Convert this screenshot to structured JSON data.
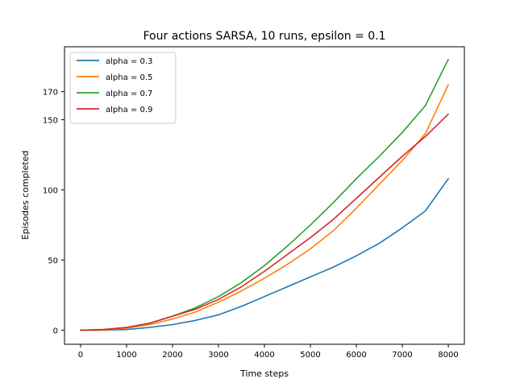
{
  "chart_data": {
    "type": "line",
    "title": "Four actions SARSA, 10 runs, epsilon = 0.1",
    "xlabel": "Time steps",
    "ylabel": "Episodes completed",
    "xlim": [
      -350,
      8350
    ],
    "ylim": [
      -10,
      202
    ],
    "xticks": [
      0,
      1000,
      2000,
      3000,
      4000,
      5000,
      6000,
      7000,
      8000
    ],
    "yticks": [
      0,
      50,
      100,
      150,
      170
    ],
    "legend_position": "upper-left",
    "grid": false,
    "series": [
      {
        "name": "alpha = 0.3",
        "color": "#1f77b4",
        "x": [
          0,
          500,
          1000,
          1500,
          2000,
          2500,
          3000,
          3500,
          4000,
          4500,
          5000,
          5500,
          6000,
          6500,
          7000,
          7500,
          8000
        ],
        "y": [
          0,
          0,
          0.5,
          2,
          4,
          7,
          11,
          17,
          24,
          31,
          38,
          45,
          53,
          62,
          73,
          85,
          108
        ]
      },
      {
        "name": "alpha = 0.5",
        "color": "#ff7f0e",
        "x": [
          0,
          500,
          1000,
          1500,
          2000,
          2500,
          3000,
          3500,
          4000,
          4500,
          5000,
          5500,
          6000,
          6500,
          7000,
          7500,
          8000
        ],
        "y": [
          0,
          0,
          1.5,
          4,
          8,
          13,
          20,
          28,
          37,
          47,
          58,
          71,
          87,
          104,
          121,
          140,
          175
        ]
      },
      {
        "name": "alpha = 0.7",
        "color": "#2ca02c",
        "x": [
          0,
          500,
          1000,
          1500,
          2000,
          2500,
          3000,
          3500,
          4000,
          4500,
          5000,
          5500,
          6000,
          6500,
          7000,
          7500,
          8000
        ],
        "y": [
          0,
          0.5,
          2,
          5,
          10,
          16,
          24,
          34,
          46,
          60,
          75,
          91,
          108,
          124,
          141,
          160,
          193
        ]
      },
      {
        "name": "alpha = 0.9",
        "color": "#d62728",
        "x": [
          0,
          500,
          1000,
          1500,
          2000,
          2500,
          3000,
          3500,
          4000,
          4500,
          5000,
          5500,
          6000,
          6500,
          7000,
          7500,
          8000
        ],
        "y": [
          0,
          0.5,
          2,
          5,
          10,
          15,
          22,
          31,
          42,
          54,
          66,
          79,
          94,
          109,
          124,
          138,
          154
        ]
      }
    ]
  }
}
